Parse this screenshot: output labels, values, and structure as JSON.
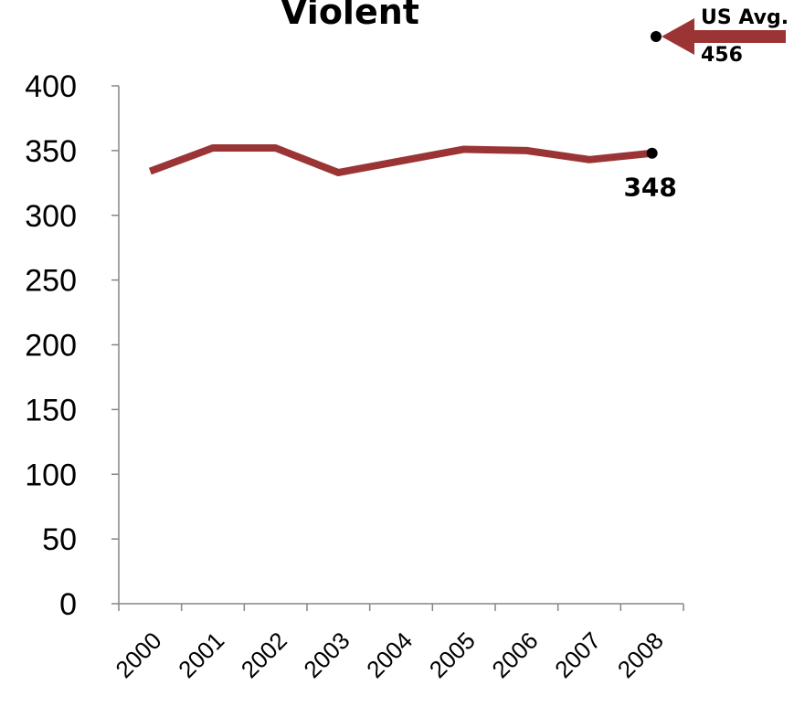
{
  "chart_data": {
    "type": "line",
    "title": "Violent",
    "categories": [
      "2000",
      "2001",
      "2002",
      "2003",
      "2004",
      "2005",
      "2006",
      "2007",
      "2008"
    ],
    "series": [
      {
        "values": [
          334,
          352,
          352,
          333,
          342,
          351,
          350,
          343,
          348
        ]
      }
    ],
    "ylim": [
      0,
      400
    ],
    "yticks": [
      "0",
      "50",
      "100",
      "150",
      "200",
      "250",
      "300",
      "350",
      "400"
    ],
    "grid": false,
    "line_color": "#9B3535",
    "end_label": "348",
    "reference": {
      "label_line1": "US Avg.",
      "label_line2": "456",
      "value": 456,
      "arrow_color": "#9B3535"
    }
  }
}
